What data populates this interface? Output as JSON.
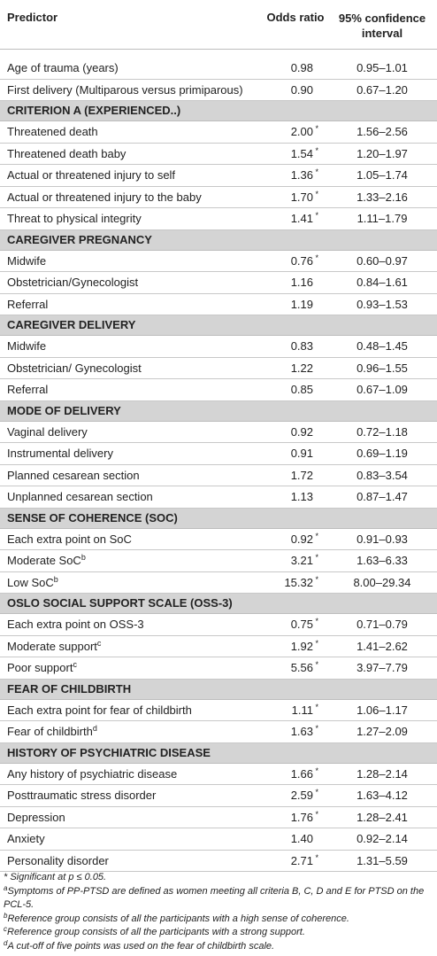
{
  "header": {
    "predictor": "Predictor",
    "odds_ratio": "Odds ratio",
    "ci_line1": "95% confidence",
    "ci_line2": "interval"
  },
  "top_rows": [
    {
      "label": "Age of trauma (years)",
      "or": "0.98",
      "sig": "",
      "ci": "0.95–1.01"
    },
    {
      "label": "First delivery (Multiparous versus primiparous)",
      "or": "0.90",
      "sig": "",
      "ci": "0.67–1.20"
    }
  ],
  "sections": [
    {
      "title": "CRITERION A (EXPERIENCED..)",
      "rows": [
        {
          "label": "Threatened death",
          "sup": "",
          "or": "2.00",
          "sig": "*",
          "ci": "1.56–2.56"
        },
        {
          "label": "Threatened death baby",
          "sup": "",
          "or": "1.54",
          "sig": "*",
          "ci": "1.20–1.97"
        },
        {
          "label": "Actual or threatened injury to self",
          "sup": "",
          "or": "1.36",
          "sig": "*",
          "ci": "1.05–1.74"
        },
        {
          "label": "Actual or threatened injury to the baby",
          "sup": "",
          "or": "1.70",
          "sig": "*",
          "ci": "1.33–2.16"
        },
        {
          "label": "Threat to physical integrity",
          "sup": "",
          "or": "1.41",
          "sig": "*",
          "ci": "1.11–1.79"
        }
      ]
    },
    {
      "title": "CAREGIVER PREGNANCY",
      "rows": [
        {
          "label": "Midwife",
          "sup": "",
          "or": "0.76",
          "sig": "*",
          "ci": "0.60–0.97"
        },
        {
          "label": "Obstetrician/Gynecologist",
          "sup": "",
          "or": "1.16",
          "sig": "",
          "ci": "0.84–1.61"
        },
        {
          "label": "Referral",
          "sup": "",
          "or": "1.19",
          "sig": "",
          "ci": "0.93–1.53"
        }
      ]
    },
    {
      "title": "CAREGIVER DELIVERY",
      "rows": [
        {
          "label": "Midwife",
          "sup": "",
          "or": "0.83",
          "sig": "",
          "ci": "0.48–1.45"
        },
        {
          "label": "Obstetrician/ Gynecologist",
          "sup": "",
          "or": "1.22",
          "sig": "",
          "ci": "0.96–1.55"
        },
        {
          "label": "Referral",
          "sup": "",
          "or": "0.85",
          "sig": "",
          "ci": "0.67–1.09"
        }
      ]
    },
    {
      "title": "MODE OF DELIVERY",
      "rows": [
        {
          "label": "Vaginal delivery",
          "sup": "",
          "or": "0.92",
          "sig": "",
          "ci": "0.72–1.18"
        },
        {
          "label": "Instrumental delivery",
          "sup": "",
          "or": "0.91",
          "sig": "",
          "ci": "0.69–1.19"
        },
        {
          "label": "Planned cesarean section",
          "sup": "",
          "or": "1.72",
          "sig": "",
          "ci": "0.83–3.54"
        },
        {
          "label": "Unplanned cesarean section",
          "sup": "",
          "or": "1.13",
          "sig": "",
          "ci": "0.87–1.47"
        }
      ]
    },
    {
      "title": "SENSE OF COHERENCE (SOC)",
      "rows": [
        {
          "label": "Each extra point on SoC",
          "sup": "",
          "or": "0.92",
          "sig": "*",
          "ci": "0.91–0.93"
        },
        {
          "label": "Moderate SoC",
          "sup": "b",
          "or": "3.21",
          "sig": "*",
          "ci": "1.63–6.33"
        },
        {
          "label": "Low SoC",
          "sup": "b",
          "or": "15.32",
          "sig": "*",
          "ci": "8.00–29.34"
        }
      ]
    },
    {
      "title": "OSLO SOCIAL SUPPORT SCALE (OSS-3)",
      "rows": [
        {
          "label": "Each extra point on OSS-3",
          "sup": "",
          "or": "0.75",
          "sig": "*",
          "ci": "0.71–0.79"
        },
        {
          "label": "Moderate support",
          "sup": "c",
          "or": "1.92",
          "sig": "*",
          "ci": "1.41–2.62"
        },
        {
          "label": "Poor support",
          "sup": "c",
          "or": "5.56",
          "sig": "*",
          "ci": "3.97–7.79"
        }
      ]
    },
    {
      "title": "FEAR OF CHILDBIRTH",
      "rows": [
        {
          "label": "Each extra point for fear of childbirth",
          "sup": "",
          "or": "1.11",
          "sig": "*",
          "ci": "1.06–1.17"
        },
        {
          "label": "Fear of childbirth",
          "sup": "d",
          "or": "1.63",
          "sig": "*",
          "ci": "1.27–2.09"
        }
      ]
    },
    {
      "title": "HISTORY OF PSYCHIATRIC DISEASE",
      "rows": [
        {
          "label": "Any history of psychiatric disease",
          "sup": "",
          "or": "1.66",
          "sig": "*",
          "ci": "1.28–2.14"
        },
        {
          "label": "Posttraumatic stress disorder",
          "sup": "",
          "or": "2.59",
          "sig": "*",
          "ci": "1.63–4.12"
        },
        {
          "label": "Depression",
          "sup": "",
          "or": "1.76",
          "sig": "*",
          "ci": "1.28–2.41"
        },
        {
          "label": "Anxiety",
          "sup": "",
          "or": "1.40",
          "sig": "",
          "ci": "0.92–2.14"
        },
        {
          "label": "Personality disorder",
          "sup": "",
          "or": "2.71",
          "sig": "*",
          "ci": "1.31–5.59"
        }
      ]
    }
  ],
  "footnotes": [
    {
      "mark": "",
      "text": "* Significant at p ≤ 0.05."
    },
    {
      "mark": "a",
      "text": "Symptoms of PP-PTSD are defined as women meeting all criteria B, C, D and E for PTSD on the PCL-5."
    },
    {
      "mark": "b",
      "text": "Reference group consists of all the participants with a high sense of coherence."
    },
    {
      "mark": "c",
      "text": "Reference group consists of all the participants with a strong support."
    },
    {
      "mark": "d",
      "text": "A cut-off of five points was used on the fear of childbirth scale."
    }
  ]
}
